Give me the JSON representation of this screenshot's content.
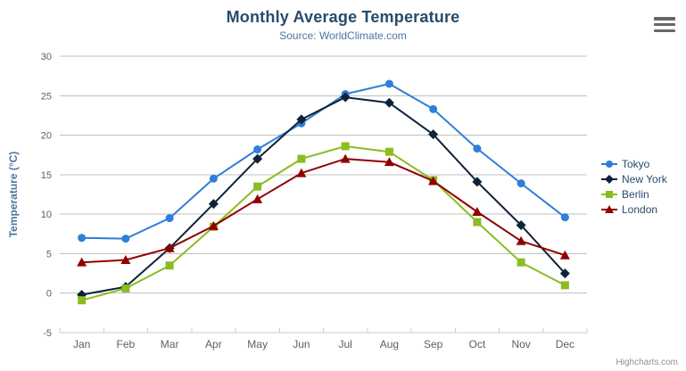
{
  "chart": {
    "title": "Monthly Average Temperature",
    "subtitle": "Source: WorldClimate.com",
    "credits": "Highcharts.com",
    "export_menu_icon": "hamburger-icon",
    "colors": {
      "title": "#274b6d",
      "subtitle": "#4d759e",
      "axis_title": "#4d759e",
      "tick_label": "#606060",
      "gridline": "#C0C0C0",
      "axis_line": "#C0D0E0",
      "legend_text": "#274b6d",
      "credits_text": "#909090"
    }
  },
  "chart_data": {
    "type": "line",
    "title": "Monthly Average Temperature",
    "subtitle": "Source: WorldClimate.com",
    "xlabel": "",
    "ylabel": "Temperature (°C)",
    "categories": [
      "Jan",
      "Feb",
      "Mar",
      "Apr",
      "May",
      "Jun",
      "Jul",
      "Aug",
      "Sep",
      "Oct",
      "Nov",
      "Dec"
    ],
    "ylim": [
      -5,
      30
    ],
    "ytick_step": 5,
    "grid": true,
    "legend_position": "right",
    "series": [
      {
        "name": "Tokyo",
        "color": "#2f7ed8",
        "marker": "circle",
        "values": [
          7.0,
          6.9,
          9.5,
          14.5,
          18.2,
          21.5,
          25.2,
          26.5,
          23.3,
          18.3,
          13.9,
          9.6
        ]
      },
      {
        "name": "New York",
        "color": "#0d233a",
        "marker": "diamond",
        "values": [
          -0.2,
          0.8,
          5.7,
          11.3,
          17.0,
          22.0,
          24.8,
          24.1,
          20.1,
          14.1,
          8.6,
          2.5
        ]
      },
      {
        "name": "Berlin",
        "color": "#8bbc21",
        "marker": "square",
        "values": [
          -0.9,
          0.6,
          3.5,
          8.4,
          13.5,
          17.0,
          18.6,
          17.9,
          14.3,
          9.0,
          3.9,
          1.0
        ]
      },
      {
        "name": "London",
        "color": "#910000",
        "marker": "triangle",
        "values": [
          3.9,
          4.2,
          5.7,
          8.5,
          11.9,
          15.2,
          17.0,
          16.6,
          14.2,
          10.3,
          6.6,
          4.8
        ]
      }
    ]
  }
}
